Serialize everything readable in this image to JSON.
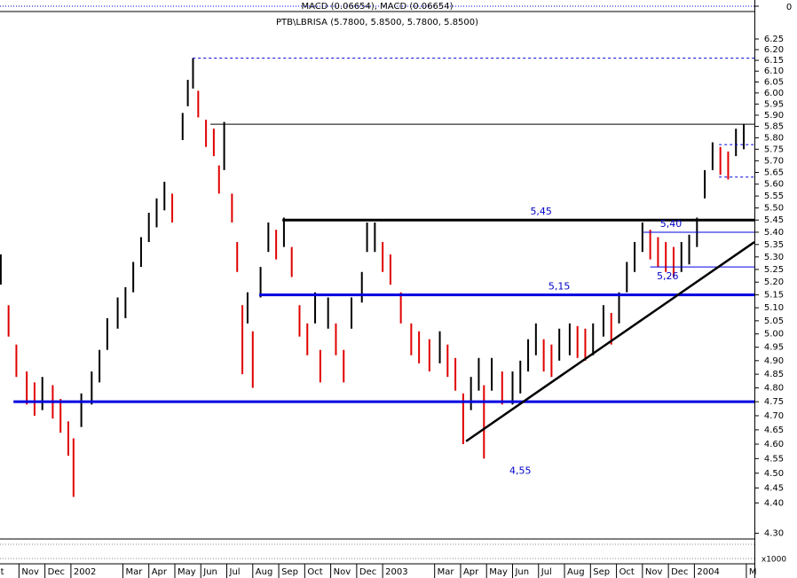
{
  "chart_data": {
    "type": "hilo",
    "title": "PTB\\LBRISA (5.7800, 5.8500, 5.7800, 5.8500)",
    "subtitle": "MACD (0.06654), MACD (0.06654)",
    "log_scale": true,
    "up_color": "#000000",
    "down_color": "#e00000",
    "x": [
      0.3,
      0.6,
      0.9,
      1.3,
      1.6,
      1.9,
      2.3,
      2.6,
      2.9,
      3.1,
      3.4,
      3.8,
      4.1,
      4.4,
      4.8,
      5.1,
      5.4,
      5.7,
      6.0,
      6.3,
      6.6,
      6.9,
      7.3,
      7.5,
      7.7,
      7.9,
      8.2,
      8.5,
      8.7,
      8.9,
      9.2,
      9.4,
      9.6,
      9.8,
      10.0,
      10.3,
      10.6,
      10.9,
      11.2,
      11.5,
      11.8,
      12.1,
      12.4,
      12.6,
      12.9,
      13.2,
      13.5,
      13.8,
      14.2,
      14.4,
      14.7,
      15.0,
      15.3,
      15.7,
      16.1,
      16.4,
      16.8,
      17.2,
      17.5,
      17.8,
      18.1,
      18.4,
      18.7,
      18.9,
      19.2,
      19.6,
      20.0,
      20.3,
      20.6,
      20.9,
      21.2,
      21.5,
      21.8,
      22.2,
      22.5,
      22.8,
      23.1,
      23.5,
      23.8,
      24.1,
      24.4,
      24.7,
      25.0,
      25.3,
      25.6,
      25.9,
      26.2,
      26.5,
      26.8,
      27.1,
      27.4,
      27.7,
      28.0,
      28.3,
      28.6,
      28.9
    ],
    "high": [
      5.31,
      5.11,
      4.96,
      4.86,
      4.82,
      4.84,
      4.81,
      4.76,
      4.68,
      4.62,
      4.78,
      4.86,
      4.94,
      5.06,
      5.14,
      5.18,
      5.28,
      5.38,
      5.48,
      5.54,
      5.61,
      5.56,
      5.91,
      6.06,
      6.16,
      6.01,
      5.88,
      5.84,
      5.68,
      5.87,
      5.56,
      5.36,
      5.11,
      5.16,
      5.01,
      5.26,
      5.44,
      5.41,
      5.46,
      5.34,
      5.11,
      5.04,
      5.16,
      4.94,
      5.14,
      5.04,
      4.94,
      5.14,
      5.24,
      5.44,
      5.44,
      5.36,
      5.31,
      5.16,
      5.04,
      5.01,
      4.98,
      5.01,
      4.96,
      4.91,
      4.78,
      4.84,
      4.91,
      4.81,
      4.91,
      4.86,
      4.86,
      4.9,
      4.98,
      5.04,
      4.98,
      4.96,
      5.02,
      5.04,
      5.03,
      5.02,
      5.04,
      5.11,
      5.08,
      5.16,
      5.28,
      5.36,
      5.44,
      5.41,
      5.38,
      5.36,
      5.34,
      5.36,
      5.39,
      5.46,
      5.66,
      5.78,
      5.76,
      5.74,
      5.84,
      5.86
    ],
    "low": [
      5.19,
      4.99,
      4.84,
      4.74,
      4.7,
      4.72,
      4.69,
      4.64,
      4.56,
      4.42,
      4.66,
      4.74,
      4.82,
      4.94,
      5.02,
      5.06,
      5.16,
      5.26,
      5.36,
      5.42,
      5.49,
      5.44,
      5.79,
      5.94,
      6.02,
      5.89,
      5.76,
      5.72,
      5.56,
      5.66,
      5.44,
      5.24,
      4.85,
      5.04,
      4.8,
      5.14,
      5.32,
      5.29,
      5.34,
      5.22,
      4.99,
      4.92,
      5.04,
      4.82,
      5.02,
      4.92,
      4.82,
      5.02,
      5.12,
      5.32,
      5.32,
      5.24,
      5.19,
      5.04,
      4.92,
      4.89,
      4.86,
      4.89,
      4.84,
      4.79,
      4.6,
      4.72,
      4.79,
      4.55,
      4.79,
      4.74,
      4.74,
      4.78,
      4.86,
      4.92,
      4.86,
      4.84,
      4.9,
      4.92,
      4.91,
      4.9,
      4.92,
      4.99,
      4.96,
      5.04,
      5.16,
      5.24,
      5.32,
      5.29,
      5.26,
      5.24,
      5.22,
      5.24,
      5.27,
      5.34,
      5.54,
      5.66,
      5.64,
      5.62,
      5.72,
      5.75
    ],
    "xlim": [
      0.27,
      29.31
    ],
    "xticks": [
      {
        "value": 0,
        "label": "ct"
      },
      {
        "value": 1,
        "label": "Nov"
      },
      {
        "value": 2,
        "label": "Dec"
      },
      {
        "value": 3,
        "label": "2002"
      },
      {
        "value": 5,
        "label": "Mar"
      },
      {
        "value": 6,
        "label": "Apr"
      },
      {
        "value": 7,
        "label": "May"
      },
      {
        "value": 8,
        "label": "Jun"
      },
      {
        "value": 9,
        "label": "Jul"
      },
      {
        "value": 10,
        "label": "Aug"
      },
      {
        "value": 11,
        "label": "Sep"
      },
      {
        "value": 12,
        "label": "Oct"
      },
      {
        "value": 13,
        "label": "Nov"
      },
      {
        "value": 14,
        "label": "Dec"
      },
      {
        "value": 15,
        "label": "2003"
      },
      {
        "value": 17,
        "label": "Mar"
      },
      {
        "value": 18,
        "label": "Apr"
      },
      {
        "value": 19,
        "label": "May"
      },
      {
        "value": 20,
        "label": "Jun"
      },
      {
        "value": 21,
        "label": "Jul"
      },
      {
        "value": 22,
        "label": "Aug"
      },
      {
        "value": 23,
        "label": "Sep"
      },
      {
        "value": 24,
        "label": "Oct"
      },
      {
        "value": 25,
        "label": "Nov"
      },
      {
        "value": 26,
        "label": "Dec"
      },
      {
        "value": 27,
        "label": "2004"
      },
      {
        "value": 29,
        "label": "M"
      }
    ],
    "ylim": [
      4.27,
      6.36
    ],
    "yticks": [
      {
        "value": 4.3,
        "label": "4.30"
      },
      {
        "value": 4.4,
        "label": "4.40"
      },
      {
        "value": 4.45,
        "label": "4.45"
      },
      {
        "value": 4.5,
        "label": "4.50"
      },
      {
        "value": 4.55,
        "label": "4.55"
      },
      {
        "value": 4.6,
        "label": "4.60"
      },
      {
        "value": 4.65,
        "label": "4.65"
      },
      {
        "value": 4.7,
        "label": "4.70"
      },
      {
        "value": 4.75,
        "label": "4.75"
      },
      {
        "value": 4.8,
        "label": "4.80"
      },
      {
        "value": 4.85,
        "label": "4.85"
      },
      {
        "value": 4.9,
        "label": "4.90"
      },
      {
        "value": 4.95,
        "label": "4.95"
      },
      {
        "value": 5.0,
        "label": "5.00"
      },
      {
        "value": 5.05,
        "label": "5.05"
      },
      {
        "value": 5.1,
        "label": "5.10"
      },
      {
        "value": 5.15,
        "label": "5.15"
      },
      {
        "value": 5.2,
        "label": "5.20"
      },
      {
        "value": 5.25,
        "label": "5.25"
      },
      {
        "value": 5.3,
        "label": "5.30"
      },
      {
        "value": 5.35,
        "label": "5.35"
      },
      {
        "value": 5.4,
        "label": "5.40"
      },
      {
        "value": 5.45,
        "label": "5.45"
      },
      {
        "value": 5.5,
        "label": "5.50"
      },
      {
        "value": 5.55,
        "label": "5.55"
      },
      {
        "value": 5.6,
        "label": "5.60"
      },
      {
        "value": 5.65,
        "label": "5.65"
      },
      {
        "value": 5.7,
        "label": "5.70"
      },
      {
        "value": 5.75,
        "label": "5.75"
      },
      {
        "value": 5.8,
        "label": "5.80"
      },
      {
        "value": 5.85,
        "label": "5.85"
      },
      {
        "value": 5.9,
        "label": "5.90"
      },
      {
        "value": 5.95,
        "label": "5.95"
      },
      {
        "value": 6.0,
        "label": "6.00"
      },
      {
        "value": 6.05,
        "label": "6.05"
      },
      {
        "value": 6.1,
        "label": "6.10"
      },
      {
        "value": 6.15,
        "label": "6.15"
      },
      {
        "value": 6.2,
        "label": "6.20"
      },
      {
        "value": 6.25,
        "label": "6.25"
      }
    ],
    "levels": [
      {
        "value": 6.16,
        "from": 7.69,
        "style": "dashed",
        "color": "#0000e0"
      },
      {
        "value": 5.86,
        "from": 8.37,
        "style": "thin",
        "color": "#000000"
      },
      {
        "value": 5.77,
        "from": 27.95,
        "style": "dashed",
        "color": "#0000e0"
      },
      {
        "value": 5.63,
        "from": 27.95,
        "style": "dashed",
        "color": "#0000e0"
      },
      {
        "value": 5.45,
        "from": 11.14,
        "style": "thick",
        "color": "#000000",
        "label": "5,45",
        "label_x": 21.1,
        "label_side": "above"
      },
      {
        "value": 5.4,
        "from": 25.04,
        "style": "thin",
        "color": "#0000e0",
        "label": "5,40",
        "label_x": 26.1,
        "label_side": "above"
      },
      {
        "value": 5.26,
        "from": 25.3,
        "style": "thin",
        "color": "#0000e0",
        "label": "5,26",
        "label_x": 25.97,
        "label_side": "below"
      },
      {
        "value": 5.15,
        "from": 10.25,
        "style": "thick",
        "color": "#0000e0",
        "label": "5,15",
        "label_x": 21.8,
        "label_side": "above"
      },
      {
        "value": 4.75,
        "from": 0.79,
        "style": "thick",
        "color": "#0000e0"
      }
    ],
    "trendline": {
      "x": [
        18.21,
        29.31
      ],
      "y": [
        4.61,
        5.36
      ],
      "color": "#000000"
    },
    "point_labels": [
      {
        "value": 4.55,
        "label": "4,55",
        "x": 20.3
      }
    ],
    "macd_yticks": [
      0
    ],
    "volume_label": "x1000"
  }
}
